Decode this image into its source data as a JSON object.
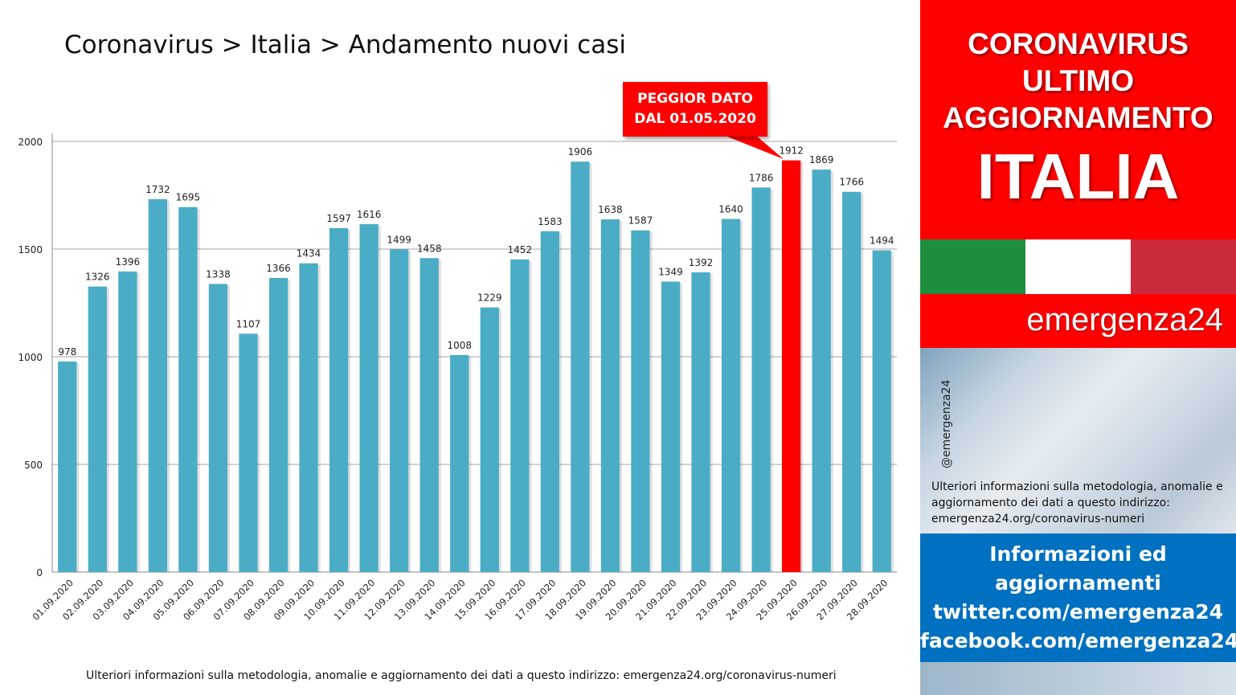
{
  "title": "Coronavirus > Italia > Andamento nuovi casi",
  "callout": {
    "line1": "PEGGIOR DATO",
    "line2": "DAL 01.05.2020"
  },
  "footer": "Ulteriori informazioni sulla metodologia, anomalie e aggiornamento dei dati a questo indirizzo: emergenza24.org/coronavirus-numeri",
  "sidebar": {
    "line1": "CORONAVIRUS",
    "line2": "ULTIMO",
    "line3": "AGGIORNAMENTO",
    "country": "ITALIA",
    "brand": "emergenza24",
    "handle": "@emergenza24",
    "note": "Ulteriori informazioni sulla metodologia, anomalie e aggiornamento dei dati a questo indirizzo: emergenza24.org/coronavirus-numeri",
    "info1": "Informazioni ed",
    "info2": "aggiornamenti",
    "info3": "twitter.com/emergenza24",
    "info4": "facebook.com/emergenza24"
  },
  "colors": {
    "bar": "#4bacc6",
    "highlight": "#ff0000",
    "grid": "#a6a6a6"
  },
  "chart_data": {
    "type": "bar",
    "title": "",
    "xlabel": "",
    "ylabel": "",
    "ylim": [
      0,
      2000
    ],
    "yticks": [
      0,
      500,
      1000,
      1500,
      2000
    ],
    "grid": true,
    "highlight_category": "25.09.2020",
    "categories": [
      "01.09.2020",
      "02.09.2020",
      "03.09.2020",
      "04.09.2020",
      "05.09.2020",
      "06.09.2020",
      "07.09.2020",
      "08.09.2020",
      "09.09.2020",
      "10.09.2020",
      "11.09.2020",
      "12.09.2020",
      "13.09.2020",
      "14.09.2020",
      "15.09.2020",
      "16.09.2020",
      "17.09.2020",
      "18.09.2020",
      "19.09.2020",
      "20.09.2020",
      "21.09.2020",
      "22.09.2020",
      "23.09.2020",
      "24.09.2020",
      "25.09.2020",
      "26.09.2020",
      "27.09.2020",
      "28.09.2020"
    ],
    "values": [
      978,
      1326,
      1396,
      1732,
      1695,
      1338,
      1107,
      1366,
      1434,
      1597,
      1616,
      1499,
      1458,
      1008,
      1229,
      1452,
      1583,
      1906,
      1638,
      1587,
      1349,
      1392,
      1640,
      1786,
      1912,
      1869,
      1766,
      1494
    ]
  }
}
